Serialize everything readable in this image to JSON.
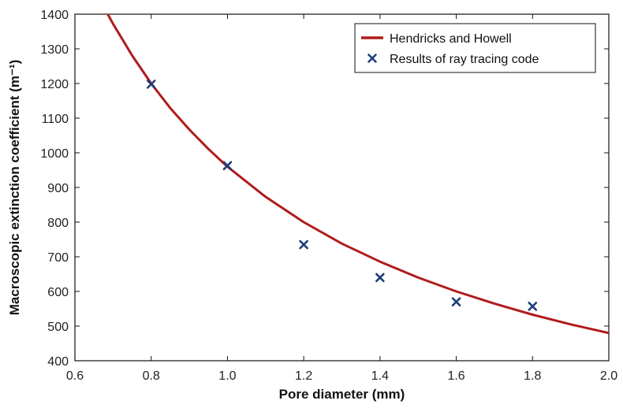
{
  "chart_data": {
    "type": "line",
    "xlabel": "Pore diameter (mm)",
    "ylabel": "Macroscopic extinction coefficient (m⁻¹)",
    "xlim": [
      0.6,
      2.0
    ],
    "ylim": [
      400,
      1400
    ],
    "xticks": [
      "0.6",
      "0.8",
      "1.0",
      "1.2",
      "1.4",
      "1.6",
      "1.8",
      "2.0"
    ],
    "yticks": [
      "400",
      "500",
      "600",
      "700",
      "800",
      "900",
      "1000",
      "1100",
      "1200",
      "1300",
      "1400"
    ],
    "grid": false,
    "legend_position": "top-right",
    "series": [
      {
        "name": "Hendricks and Howell",
        "kind": "line",
        "color": "#b01c1c",
        "x": [
          0.68,
          0.7,
          0.75,
          0.8,
          0.85,
          0.9,
          0.95,
          1.0,
          1.1,
          1.2,
          1.3,
          1.4,
          1.5,
          1.6,
          1.7,
          1.8,
          1.9,
          2.0
        ],
        "y": [
          1412,
          1372,
          1281,
          1200,
          1129,
          1067,
          1011,
          960,
          873,
          800,
          738,
          686,
          640,
          600,
          565,
          533,
          505,
          480
        ]
      },
      {
        "name": "Results of ray tracing code",
        "kind": "scatter",
        "marker": "x",
        "color": "#1f3f7a",
        "x": [
          0.8,
          1.0,
          1.2,
          1.4,
          1.6,
          1.8
        ],
        "y": [
          1198,
          963,
          735,
          640,
          570,
          557
        ]
      }
    ]
  }
}
